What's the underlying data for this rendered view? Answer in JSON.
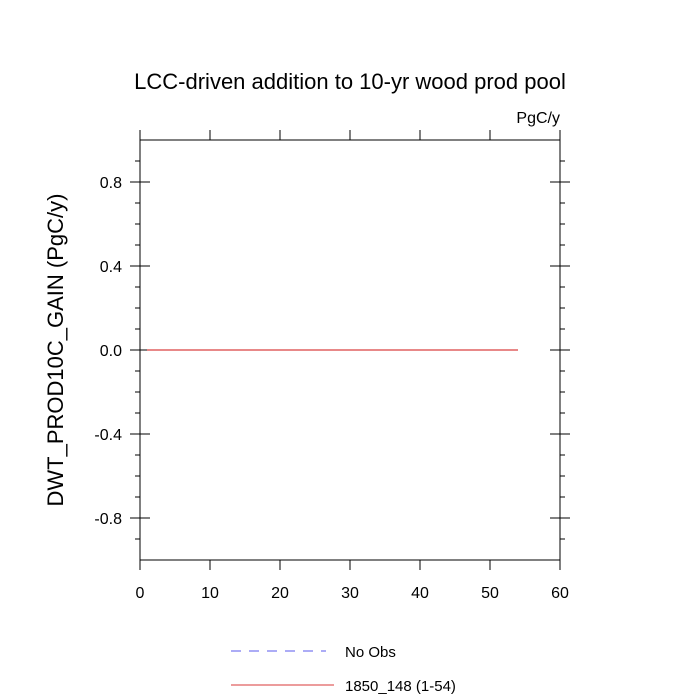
{
  "chart_data": {
    "type": "line",
    "title": "LCC-driven addition to 10-yr wood prod pool",
    "units_label": "PgC/y",
    "xlabel": "",
    "ylabel": "DWT_PROD10C_GAIN  (PgC/y)",
    "xlim": [
      0,
      60
    ],
    "ylim": [
      -1.0,
      1.0
    ],
    "x_ticks": [
      0,
      10,
      20,
      30,
      40,
      50,
      60
    ],
    "y_ticks": [
      -0.8,
      -0.4,
      0.0,
      0.4,
      0.8
    ],
    "y_tick_labels": [
      "-0.8",
      "-0.4",
      "0.0",
      "0.4",
      "0.8"
    ],
    "grid": false,
    "legend_position": "bottom",
    "series": [
      {
        "name": "No Obs",
        "color": "#7b7bf0",
        "dash": "dashed",
        "x": [],
        "y": []
      },
      {
        "name": "1850_148 (1-54)",
        "color": "#e06060",
        "dash": "solid",
        "x": [
          1,
          54
        ],
        "y": [
          0.0,
          0.0
        ]
      }
    ]
  }
}
